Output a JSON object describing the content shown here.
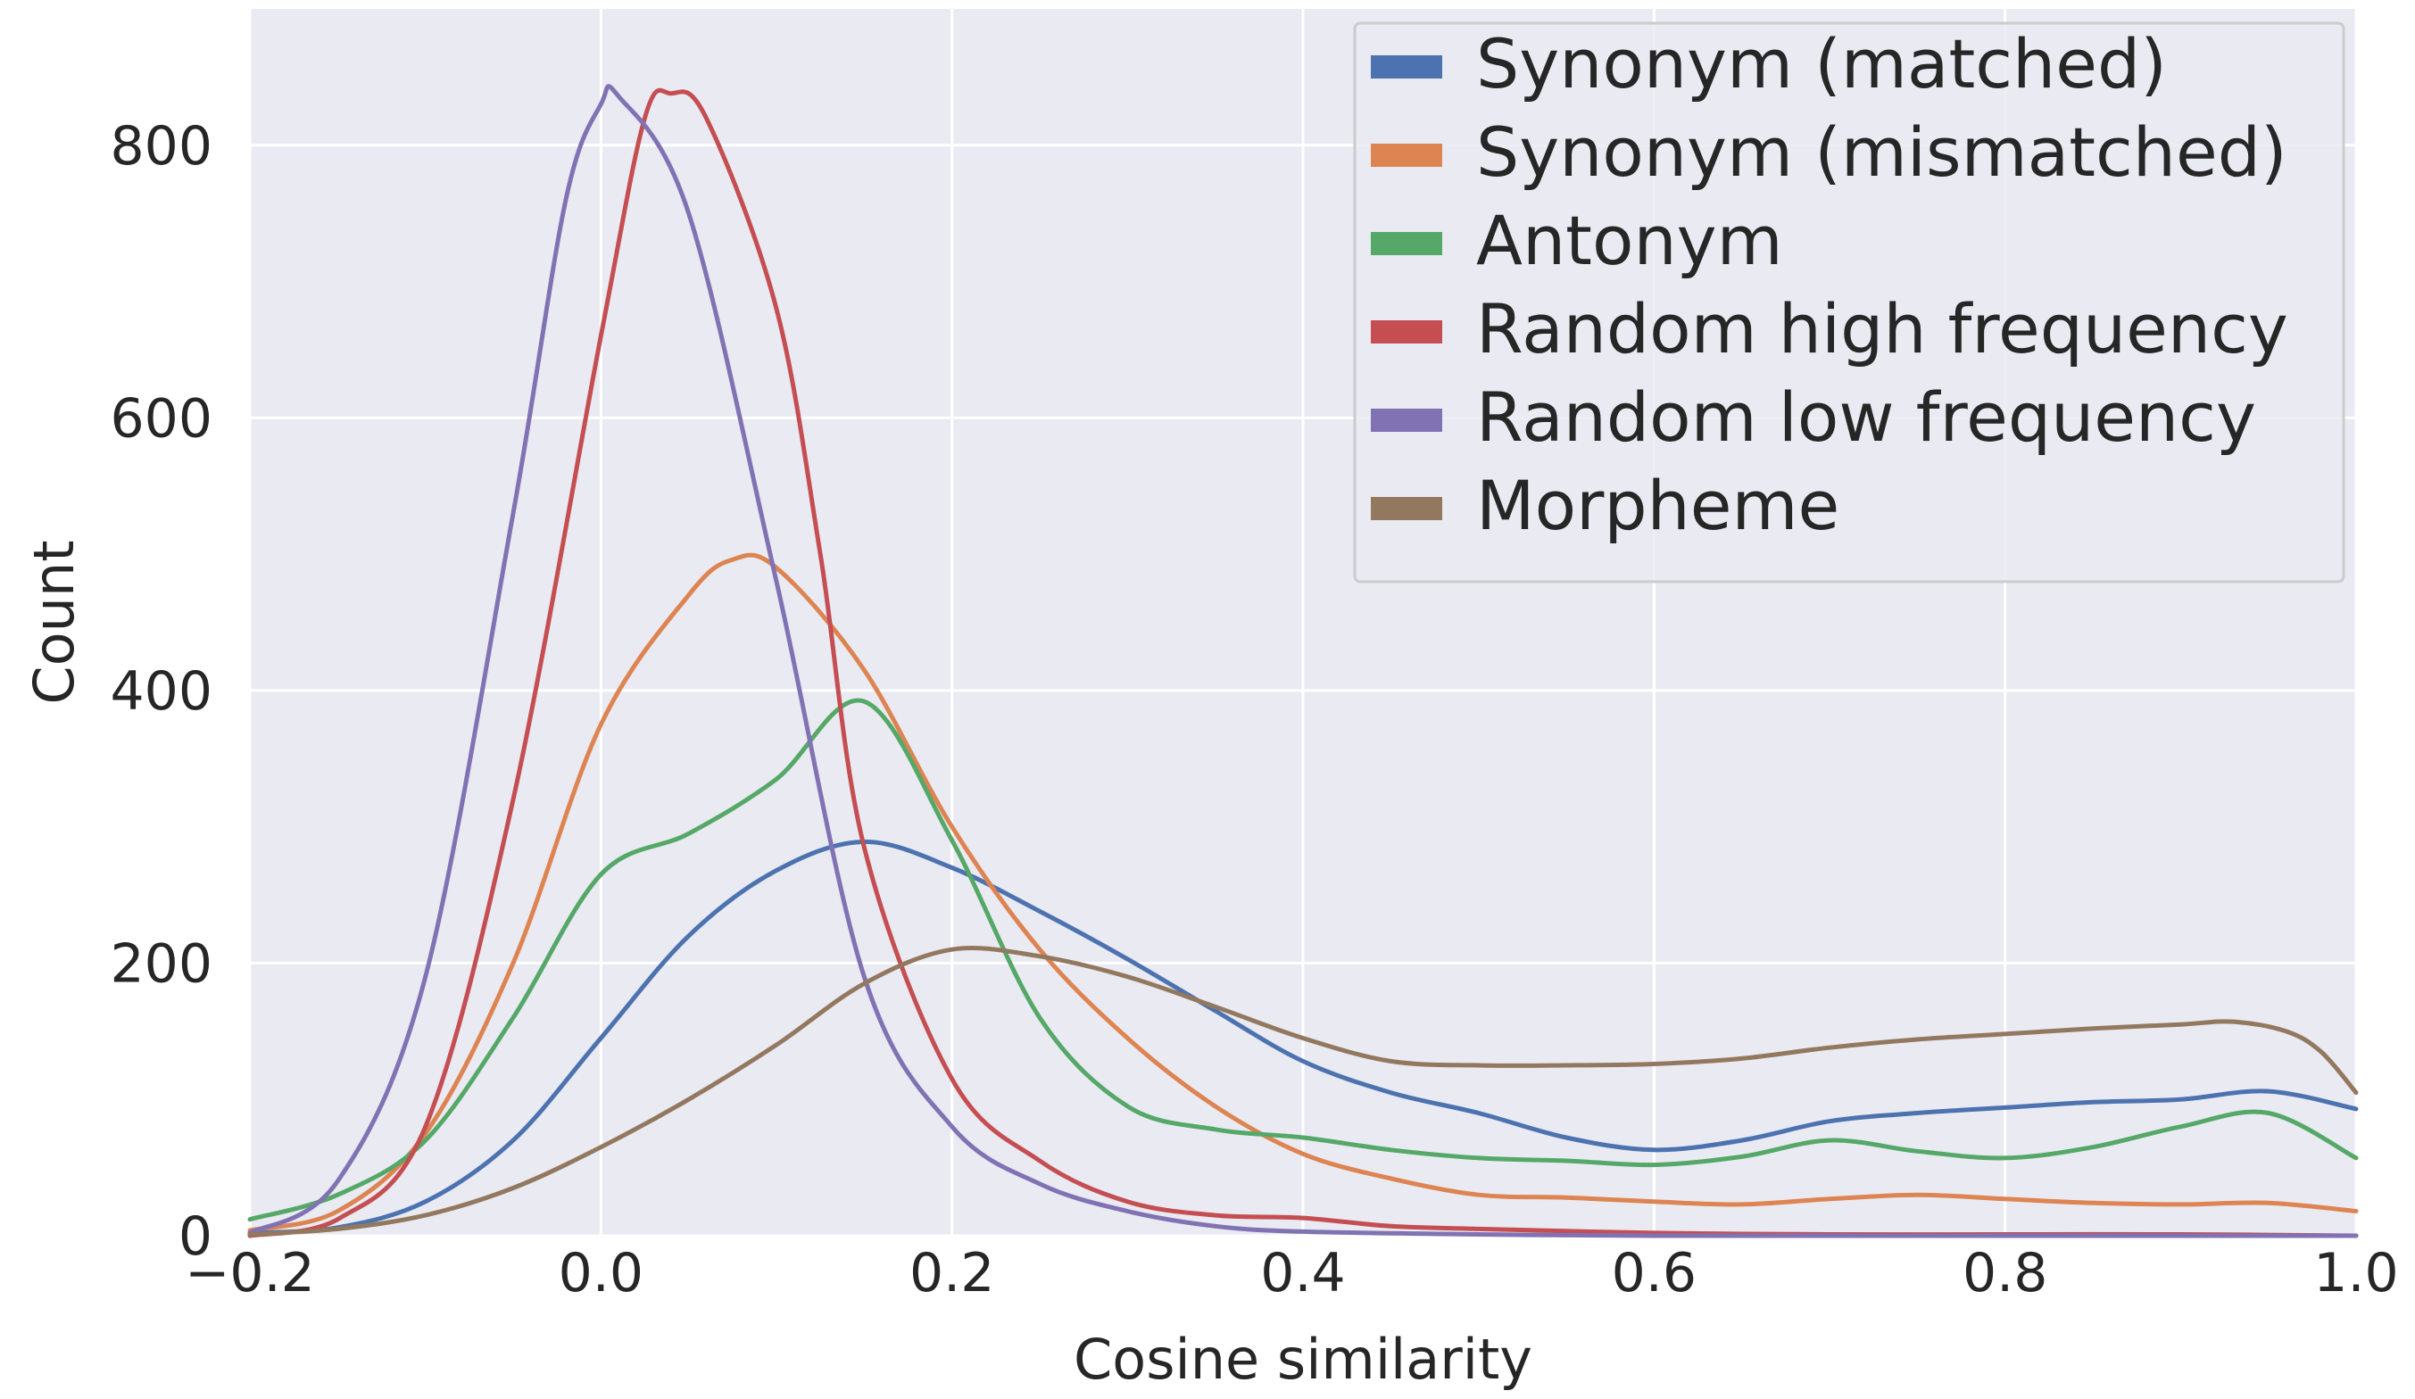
{
  "chart_data": {
    "type": "line",
    "xlabel": "Cosine similarity",
    "ylabel": "Count",
    "xlim": [
      -0.2,
      1.0
    ],
    "ylim": [
      0,
      900
    ],
    "x_ticks": [
      -0.2,
      0.0,
      0.2,
      0.4,
      0.6,
      0.8,
      1.0
    ],
    "x_tick_labels": [
      "−0.2",
      "0.0",
      "0.2",
      "0.4",
      "0.6",
      "0.8",
      "1.0"
    ],
    "y_ticks": [
      0,
      200,
      400,
      600,
      800
    ],
    "y_tick_labels": [
      "0",
      "200",
      "400",
      "600",
      "800"
    ],
    "grid": true,
    "legend_position": "top-right",
    "background": "#eaeaf2",
    "series": [
      {
        "name": "Synonym (matched)",
        "color": "#4c72b0",
        "points": [
          [
            -0.2,
            2
          ],
          [
            -0.15,
            6
          ],
          [
            -0.1,
            25
          ],
          [
            -0.05,
            70
          ],
          [
            0.0,
            145
          ],
          [
            0.05,
            220
          ],
          [
            0.1,
            268
          ],
          [
            0.15,
            289
          ],
          [
            0.2,
            270
          ],
          [
            0.25,
            238
          ],
          [
            0.3,
            203
          ],
          [
            0.35,
            165
          ],
          [
            0.4,
            128
          ],
          [
            0.45,
            105
          ],
          [
            0.5,
            90
          ],
          [
            0.55,
            72
          ],
          [
            0.6,
            63
          ],
          [
            0.65,
            70
          ],
          [
            0.7,
            84
          ],
          [
            0.75,
            90
          ],
          [
            0.8,
            94
          ],
          [
            0.85,
            98
          ],
          [
            0.9,
            100
          ],
          [
            0.95,
            106
          ],
          [
            1.0,
            93
          ]
        ]
      },
      {
        "name": "Synonym (mismatched)",
        "color": "#dd8452",
        "points": [
          [
            -0.2,
            4
          ],
          [
            -0.15,
            18
          ],
          [
            -0.1,
            75
          ],
          [
            -0.05,
            200
          ],
          [
            0.0,
            375
          ],
          [
            0.05,
            470
          ],
          [
            0.075,
            496
          ],
          [
            0.1,
            490
          ],
          [
            0.15,
            415
          ],
          [
            0.2,
            300
          ],
          [
            0.25,
            210
          ],
          [
            0.3,
            145
          ],
          [
            0.35,
            95
          ],
          [
            0.4,
            60
          ],
          [
            0.45,
            42
          ],
          [
            0.5,
            30
          ],
          [
            0.55,
            28
          ],
          [
            0.6,
            25
          ],
          [
            0.65,
            23
          ],
          [
            0.7,
            27
          ],
          [
            0.75,
            30
          ],
          [
            0.8,
            27
          ],
          [
            0.85,
            24
          ],
          [
            0.9,
            23
          ],
          [
            0.95,
            24
          ],
          [
            1.0,
            18
          ]
        ]
      },
      {
        "name": "Antonym",
        "color": "#55a868",
        "points": [
          [
            -0.2,
            12
          ],
          [
            -0.15,
            30
          ],
          [
            -0.1,
            70
          ],
          [
            -0.05,
            160
          ],
          [
            0.0,
            265
          ],
          [
            0.05,
            295
          ],
          [
            0.1,
            335
          ],
          [
            0.15,
            392
          ],
          [
            0.2,
            290
          ],
          [
            0.25,
            160
          ],
          [
            0.3,
            95
          ],
          [
            0.35,
            78
          ],
          [
            0.4,
            72
          ],
          [
            0.45,
            63
          ],
          [
            0.5,
            57
          ],
          [
            0.55,
            55
          ],
          [
            0.6,
            52
          ],
          [
            0.65,
            58
          ],
          [
            0.7,
            70
          ],
          [
            0.75,
            62
          ],
          [
            0.8,
            57
          ],
          [
            0.85,
            65
          ],
          [
            0.9,
            80
          ],
          [
            0.95,
            90
          ],
          [
            1.0,
            57
          ]
        ]
      },
      {
        "name": "Random high frequency",
        "color": "#c44e52",
        "points": [
          [
            -0.2,
            0
          ],
          [
            -0.15,
            12
          ],
          [
            -0.1,
            80
          ],
          [
            -0.05,
            320
          ],
          [
            0.0,
            660
          ],
          [
            0.025,
            820
          ],
          [
            0.04,
            838
          ],
          [
            0.06,
            820
          ],
          [
            0.1,
            680
          ],
          [
            0.125,
            500
          ],
          [
            0.15,
            285
          ],
          [
            0.2,
            115
          ],
          [
            0.25,
            55
          ],
          [
            0.3,
            25
          ],
          [
            0.35,
            15
          ],
          [
            0.4,
            13
          ],
          [
            0.45,
            7
          ],
          [
            0.5,
            5
          ],
          [
            0.6,
            2
          ],
          [
            0.7,
            1
          ],
          [
            0.8,
            1
          ],
          [
            0.9,
            1
          ],
          [
            1.0,
            0
          ]
        ]
      },
      {
        "name": "Random low frequency",
        "color": "#8172b3",
        "points": [
          [
            -0.2,
            2
          ],
          [
            -0.15,
            40
          ],
          [
            -0.1,
            190
          ],
          [
            -0.05,
            530
          ],
          [
            -0.02,
            760
          ],
          [
            0.0,
            830
          ],
          [
            0.01,
            836
          ],
          [
            0.05,
            750
          ],
          [
            0.1,
            480
          ],
          [
            0.15,
            190
          ],
          [
            0.2,
            80
          ],
          [
            0.25,
            38
          ],
          [
            0.3,
            18
          ],
          [
            0.35,
            7
          ],
          [
            0.4,
            3
          ],
          [
            0.5,
            1
          ],
          [
            0.6,
            0
          ],
          [
            0.8,
            0
          ],
          [
            1.0,
            0
          ]
        ]
      },
      {
        "name": "Morpheme",
        "color": "#937860",
        "points": [
          [
            -0.2,
            1
          ],
          [
            -0.15,
            5
          ],
          [
            -0.1,
            15
          ],
          [
            -0.05,
            35
          ],
          [
            0.0,
            65
          ],
          [
            0.05,
            100
          ],
          [
            0.1,
            140
          ],
          [
            0.15,
            185
          ],
          [
            0.2,
            210
          ],
          [
            0.25,
            205
          ],
          [
            0.3,
            190
          ],
          [
            0.35,
            168
          ],
          [
            0.4,
            145
          ],
          [
            0.45,
            128
          ],
          [
            0.5,
            125
          ],
          [
            0.55,
            125
          ],
          [
            0.6,
            126
          ],
          [
            0.65,
            130
          ],
          [
            0.7,
            138
          ],
          [
            0.75,
            144
          ],
          [
            0.8,
            148
          ],
          [
            0.85,
            152
          ],
          [
            0.9,
            155
          ],
          [
            0.93,
            157
          ],
          [
            0.96,
            150
          ],
          [
            0.98,
            135
          ],
          [
            1.0,
            105
          ]
        ]
      }
    ]
  }
}
